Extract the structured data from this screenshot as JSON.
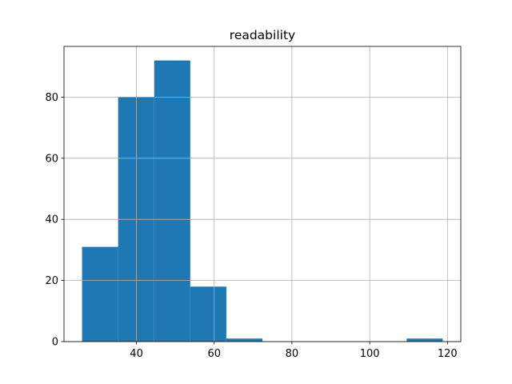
{
  "chart_data": {
    "type": "histogram",
    "title": "readability",
    "bins": [
      26,
      35.28,
      44.56,
      53.84,
      63.12,
      72.4,
      81.68,
      90.96,
      100.24,
      109.52,
      118.8
    ],
    "values": [
      31,
      80,
      92,
      18,
      1,
      0,
      0,
      0,
      0,
      1
    ],
    "color": "#1f77b4",
    "xlim": [
      21.36,
      123.44
    ],
    "xticks": [
      40,
      60,
      80,
      100,
      120
    ],
    "ylim": [
      0,
      96.6
    ],
    "yticks": [
      0,
      20,
      40,
      60,
      80
    ],
    "grid": true
  }
}
